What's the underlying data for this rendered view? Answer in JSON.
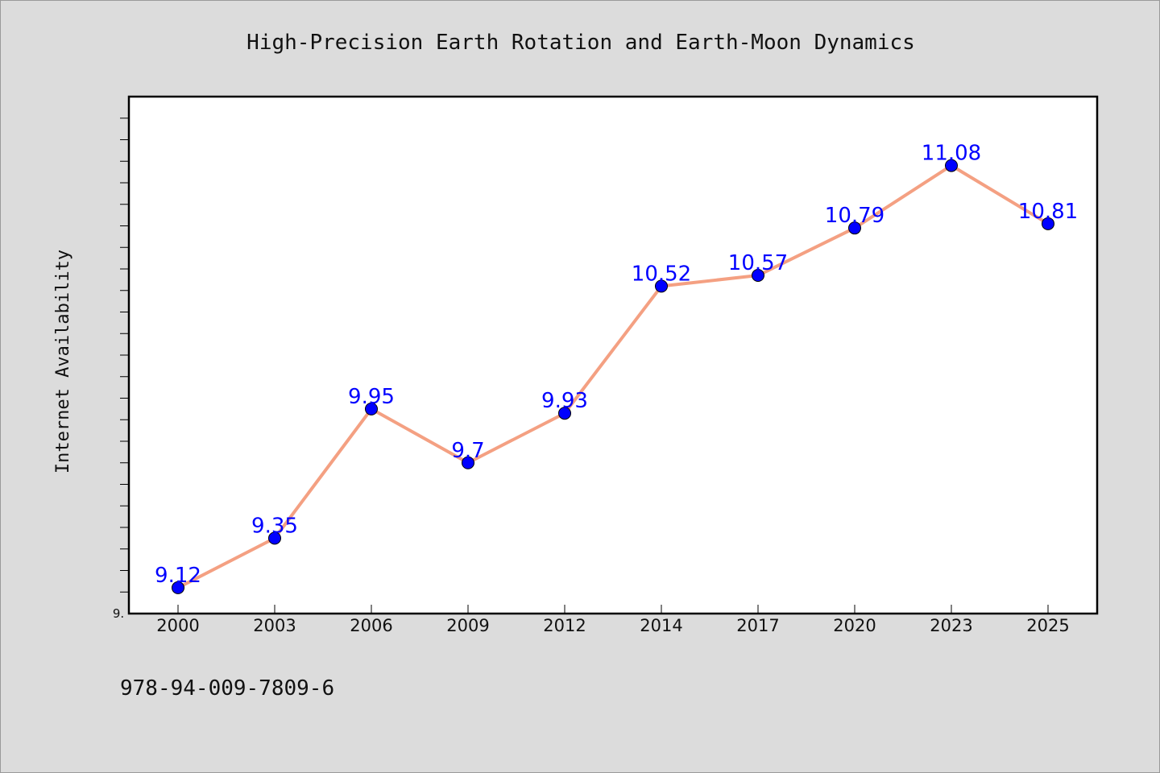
{
  "chart_data": {
    "type": "line",
    "title": "High-Precision Earth Rotation and Earth-Moon Dynamics",
    "xlabel": "",
    "ylabel": "Internet Availability",
    "categories": [
      "2000",
      "2003",
      "2006",
      "2009",
      "2012",
      "2014",
      "2017",
      "2020",
      "2023",
      "2025"
    ],
    "series": [
      {
        "values": [
          9.12,
          9.35,
          9.95,
          9.7,
          9.93,
          10.52,
          10.57,
          10.79,
          11.08,
          10.81
        ],
        "labels": [
          "9.12",
          "9.35",
          "9.95",
          "9.7",
          "9.93",
          "10.52",
          "10.57",
          "10.79",
          "11.08",
          "10.81"
        ]
      }
    ],
    "ylim": [
      9.0,
      11.4
    ],
    "y_tick_label": "9.",
    "grid": false,
    "line_color": "#f4a082",
    "marker_color": "#0000ff",
    "label_color": "#0000ff"
  },
  "footer": {
    "identifier": "978-94-009-7809-6"
  }
}
